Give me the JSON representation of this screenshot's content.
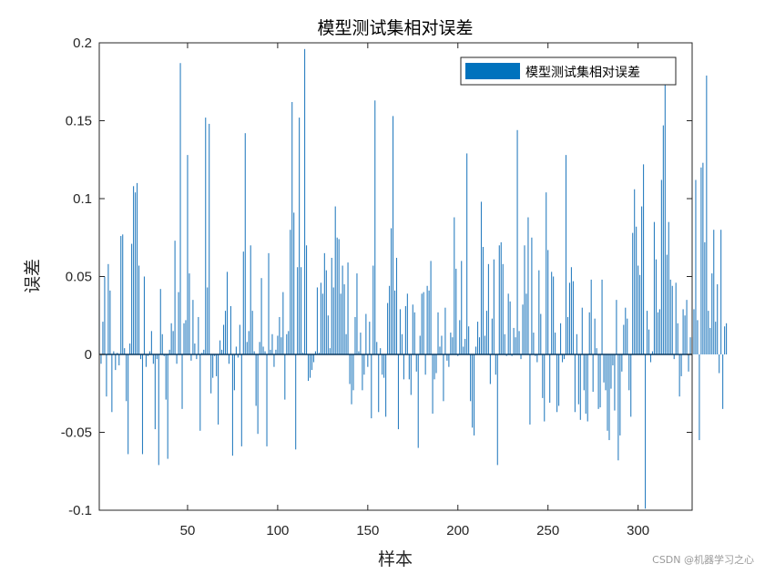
{
  "watermark": "CSDN @机器学习之心",
  "chart_data": {
    "type": "bar",
    "title": "模型测试集相对误差",
    "xlabel": "样本",
    "ylabel": "误差",
    "xlim": [
      1,
      330
    ],
    "ylim": [
      -0.1,
      0.2
    ],
    "xticks": [
      50,
      100,
      150,
      200,
      250,
      300
    ],
    "yticks": [
      -0.1,
      -0.05,
      0,
      0.05,
      0.1,
      0.15,
      0.2
    ],
    "ytick_labels": [
      "-0.1",
      "-0.05",
      "0",
      "0.05",
      "0.1",
      "0.15",
      "0.2"
    ],
    "grid": false,
    "legend_placement": "top-right",
    "series": [
      {
        "name": "模型测试集相对误差",
        "color": "#0072BD",
        "bar_color": "#2A7EC0",
        "x_start": 1,
        "values": [
          0.035,
          -0.006,
          0.021,
          0.05,
          -0.027,
          0.058,
          0.041,
          -0.037,
          0.002,
          -0.01,
          0.001,
          -0.007,
          0.076,
          0.077,
          0.004,
          -0.03,
          -0.064,
          0.007,
          0.071,
          0.108,
          0.104,
          0.11,
          0.057,
          -0.003,
          -0.064,
          0.05,
          -0.008,
          -0.001,
          0.002,
          0.015,
          -0.006,
          -0.048,
          -0.003,
          -0.071,
          0.042,
          0.013,
          -0.001,
          -0.029,
          -0.067,
          0.003,
          0.02,
          0.015,
          0.073,
          -0.006,
          0.04,
          0.187,
          -0.035,
          0.02,
          0.022,
          0.128,
          0.052,
          -0.004,
          0.035,
          0.007,
          -0.003,
          0.024,
          -0.049,
          0.001,
          0.003,
          0.152,
          0.043,
          0.148,
          -0.025,
          -0.015,
          -0.001,
          -0.014,
          -0.045,
          0.009,
          0.003,
          0.019,
          0.028,
          0.053,
          -0.006,
          0.031,
          -0.065,
          -0.023,
          0.005,
          -0.002,
          0.019,
          -0.059,
          0.066,
          0.142,
          0.008,
          0.015,
          0.07,
          0.028,
          0.002,
          -0.033,
          -0.051,
          0.008,
          0.049,
          0.005,
          0.002,
          -0.059,
          0.065,
          0.003,
          0.013,
          -0.008,
          0.003,
          0.012,
          0.024,
          0.011,
          0.04,
          -0.029,
          0.013,
          0.015,
          0.08,
          0.162,
          0.091,
          -0.061,
          0.056,
          0.152,
          0.056,
          0.001,
          0.196,
          0.07,
          -0.017,
          -0.015,
          -0.01,
          -0.005,
          0.002,
          0.043,
          0.001,
          0.046,
          0.039,
          0.065,
          0.054,
          0.025,
          0.004,
          0.062,
          0.043,
          0.095,
          0.075,
          0.074,
          0.039,
          0.057,
          0.045,
          0.013,
          0.059,
          -0.019,
          -0.032,
          -0.023,
          0.024,
          0.052,
          0.002,
          0.014,
          -0.023,
          -0.013,
          0.026,
          -0.008,
          0.021,
          -0.041,
          0.057,
          0.163,
          0.008,
          -0.037,
          0.004,
          -0.013,
          -0.015,
          -0.04,
          0.033,
          0.044,
          0.081,
          0.153,
          0.041,
          0.062,
          -0.048,
          0.029,
          0.013,
          -0.016,
          0.031,
          0.039,
          -0.016,
          -0.026,
          0.032,
          0.027,
          -0.011,
          -0.06,
          0.012,
          0.039,
          0.04,
          -0.013,
          0.044,
          0.041,
          0.06,
          -0.038,
          -0.016,
          -0.012,
          0.027,
          0.005,
          0.012,
          -0.03,
          0.03,
          -0.004,
          -0.008,
          0.014,
          0.011,
          0.088,
          0.055,
          -0.001,
          0.022,
          0.06,
          0.005,
          0.01,
          0.129,
          0.018,
          -0.03,
          -0.047,
          -0.052,
          0.005,
          0.021,
          0.011,
          0.098,
          0.069,
          0.012,
          0.028,
          0.058,
          -0.019,
          0.023,
          0.061,
          -0.013,
          -0.071,
          0.07,
          0.072,
          0.058,
          0.013,
          -0.001,
          0.039,
          0.034,
          -0.001,
          0.017,
          0.011,
          0.144,
          0.015,
          -0.003,
          0.032,
          0.07,
          0.039,
          0.088,
          -0.045,
          0.075,
          0.014,
          -0.001,
          -0.005,
          0.054,
          0.026,
          -0.028,
          -0.043,
          0.104,
          0.067,
          -0.031,
          0.053,
          0.05,
          0.014,
          -0.037,
          -0.033,
          0.02,
          -0.005,
          -0.003,
          0.128,
          0.024,
          0.046,
          0.056,
          0.047,
          -0.037,
          0.013,
          -0.032,
          -0.042,
          0.03,
          -0.023,
          -0.038,
          -0.043,
          0.027,
          0.048,
          -0.024,
          0.023,
          0.004,
          -0.035,
          -0.034,
          0.048,
          -0.018,
          -0.023,
          -0.049,
          -0.055,
          -0.022,
          -0.007,
          -0.036,
          0.035,
          -0.068,
          -0.052,
          -0.011,
          0.019,
          0.03,
          0.023,
          -0.023,
          -0.04,
          0.078,
          0.106,
          0.082,
          0.057,
          0.051,
          0.095,
          0.122,
          -0.099,
          0.028,
          0.016,
          -0.005,
          0.002,
          0.085,
          0.061,
          0.027,
          0.029,
          0.112,
          0.147,
          0.176,
          0.064,
          0.085,
          0.048,
          0.044,
          -0.003,
          0.046,
          0.02,
          -0.027,
          -0.014,
          0.029,
          0.025,
          0.035,
          -0.011,
          0.011,
          0.011,
          0.029,
          0.112,
          0.022,
          -0.055,
          0.12,
          0.123,
          0.072,
          0.179,
          0.028,
          0.017,
          0.052,
          0.08,
          0.021,
          0.045,
          -0.012,
          0.08,
          -0.035,
          0.018,
          0.02
        ]
      }
    ]
  }
}
